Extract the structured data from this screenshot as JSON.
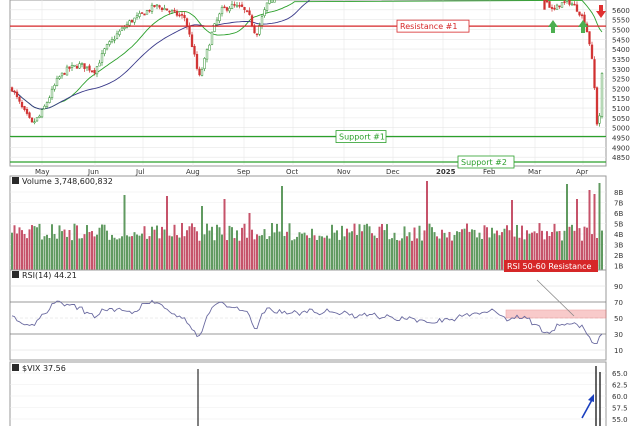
{
  "price_panel": {
    "y_ticks": [
      4850,
      4900,
      4950,
      5000,
      5050,
      5100,
      5150,
      5200,
      5250,
      5300,
      5350,
      5400,
      5450,
      5500,
      5550,
      5600
    ],
    "y_range": [
      4805,
      5650
    ],
    "annotations": {
      "resistance1": {
        "label": "Resistance #1",
        "value": 5517,
        "color": "#d62728"
      },
      "support1": {
        "label": "Support #1",
        "value": 4955,
        "color": "#2ca02c"
      },
      "support2": {
        "label": "Support #2",
        "value": 4788,
        "color": "#2ca02c"
      }
    },
    "up_color": "#2f8f2f",
    "down_color": "#d03030",
    "ma_fast_color": "#2ca02c",
    "ma_slow_color": "#3a3a8a"
  },
  "x_axis": {
    "months": [
      {
        "label": "May",
        "x": 42
      },
      {
        "label": "Jun",
        "x": 95
      },
      {
        "label": "Jul",
        "x": 143
      },
      {
        "label": "Aug",
        "x": 193
      },
      {
        "label": "Sep",
        "x": 244
      },
      {
        "label": "Oct",
        "x": 293
      },
      {
        "label": "Nov",
        "x": 344
      },
      {
        "label": "Dec",
        "x": 393
      },
      {
        "label": "2025",
        "x": 443,
        "bold": true
      },
      {
        "label": "Feb",
        "x": 490
      },
      {
        "label": "Mar",
        "x": 535
      },
      {
        "label": "Apr",
        "x": 583
      }
    ]
  },
  "volume_panel": {
    "label": "Volume 3,748,600,832",
    "y_ticks": [
      "8B",
      "7B",
      "6B",
      "5B",
      "4B",
      "3B",
      "2B",
      "1B"
    ]
  },
  "rsi_panel": {
    "label": "RSI(14) 44.21",
    "y_ticks": [
      90,
      70,
      50,
      30,
      10
    ],
    "zone_label": "RSI 50-60 Resistance",
    "zone_range": [
      50,
      60
    ],
    "line_color": "#6a6aa0"
  },
  "vix_panel": {
    "label": "$VIX 37.56",
    "y_ticks": [
      "65.0",
      "62.5",
      "60.0",
      "57.5",
      "55.0"
    ]
  },
  "chart_data": {
    "type": "candlestick",
    "series": [
      {
        "name": "Price"
      },
      {
        "name": "Volume",
        "last_value": 3748600832
      },
      {
        "name": "RSI(14)",
        "last_value": 44.21
      },
      {
        "name": "$VIX",
        "last_value": 37.56
      }
    ],
    "price_levels": {
      "resistance_1": 5517,
      "support_1": 4955,
      "support_2": 4788
    },
    "rsi_resistance_zone": [
      50,
      60
    ]
  }
}
